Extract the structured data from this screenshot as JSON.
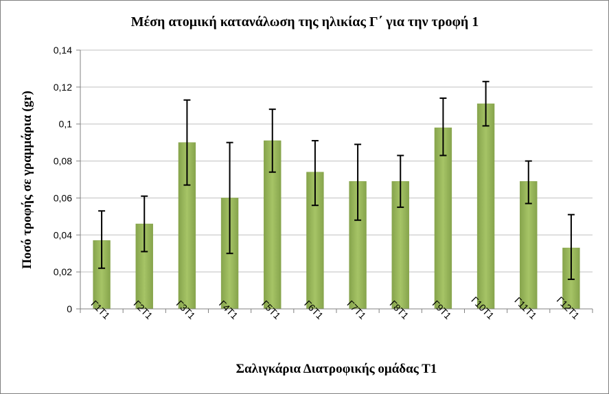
{
  "chart_data": {
    "type": "bar",
    "title": "Μέση ατομική κατανάλωση της ηλικίας Γ΄ για την τροφή 1",
    "xlabel": "Σαλιγκάρια Διατροφικής ομάδας Τ1",
    "ylabel": "Ποσό τροφής σε γραμμάρια (gr)",
    "ylim": [
      0,
      0.14
    ],
    "yticks": [
      "0",
      "0,02",
      "0,04",
      "0,06",
      "0,08",
      "0,1",
      "0,12",
      "0,14"
    ],
    "grid": true,
    "legend": "none",
    "categories": [
      "Γ1Τ1",
      "Γ2Τ1",
      "Γ3Τ1",
      "Γ4Τ1",
      "Γ5Τ1",
      "Γ6Τ1",
      "Γ7Τ1",
      "Γ8Τ1",
      "Γ9Τ1",
      "Γ10Τ1",
      "Γ11Τ1",
      "Γ12Τ1"
    ],
    "values": [
      0.037,
      0.046,
      0.09,
      0.06,
      0.091,
      0.074,
      0.069,
      0.069,
      0.098,
      0.111,
      0.069,
      0.033
    ],
    "error_low": [
      0.022,
      0.031,
      0.067,
      0.03,
      0.074,
      0.056,
      0.048,
      0.055,
      0.083,
      0.099,
      0.057,
      0.016
    ],
    "error_high": [
      0.053,
      0.061,
      0.113,
      0.09,
      0.108,
      0.091,
      0.089,
      0.083,
      0.114,
      0.123,
      0.08,
      0.051
    ],
    "colors": {
      "bar": "#9bbb59",
      "bar_edge": "#86a34a",
      "grid": "#bfbfbf",
      "axis": "#808080",
      "error": "#000000"
    }
  }
}
